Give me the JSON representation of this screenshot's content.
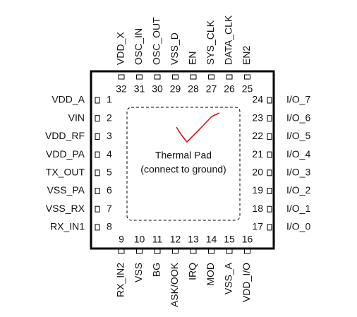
{
  "left_pins": [
    {
      "number": "1",
      "label": "VDD_A"
    },
    {
      "number": "2",
      "label": "VIN"
    },
    {
      "number": "3",
      "label": "VDD_RF"
    },
    {
      "number": "4",
      "label": "VDD_PA"
    },
    {
      "number": "5",
      "label": "TX_OUT"
    },
    {
      "number": "6",
      "label": "VSS_PA"
    },
    {
      "number": "7",
      "label": "VSS_RX"
    },
    {
      "number": "8",
      "label": "RX_IN1"
    }
  ],
  "bottom_pins": [
    {
      "number": "9",
      "label": "RX_IN2"
    },
    {
      "number": "10",
      "label": "VSS"
    },
    {
      "number": "11",
      "label": "BG"
    },
    {
      "number": "12",
      "label": "ASK/OOK"
    },
    {
      "number": "13",
      "label": "IRQ"
    },
    {
      "number": "14",
      "label": "MOD"
    },
    {
      "number": "15",
      "label": "VSS_A"
    },
    {
      "number": "16",
      "label": "VDD_I/O"
    }
  ],
  "right_pins": [
    {
      "number": "17",
      "label": "I/O_0"
    },
    {
      "number": "18",
      "label": "I/O_1"
    },
    {
      "number": "19",
      "label": "I/O_2"
    },
    {
      "number": "20",
      "label": "I/O_3"
    },
    {
      "number": "21",
      "label": "I/O_4"
    },
    {
      "number": "22",
      "label": "I/O_5"
    },
    {
      "number": "23",
      "label": "I/O_6"
    },
    {
      "number": "24",
      "label": "I/O_7"
    }
  ],
  "top_pins": [
    {
      "number": "25",
      "label": "EN2"
    },
    {
      "number": "26",
      "label": "DATA_CLK"
    },
    {
      "number": "27",
      "label": "SYS_CLK"
    },
    {
      "number": "28",
      "label": "EN"
    },
    {
      "number": "29",
      "label": "VSS_D"
    },
    {
      "number": "30",
      "label": "OSC_OUT"
    },
    {
      "number": "31",
      "label": "OSC_IN"
    },
    {
      "number": "32",
      "label": "VDD_X"
    }
  ],
  "thermal_pad": {
    "title": "Thermal Pad",
    "note": "(connect to ground)"
  }
}
